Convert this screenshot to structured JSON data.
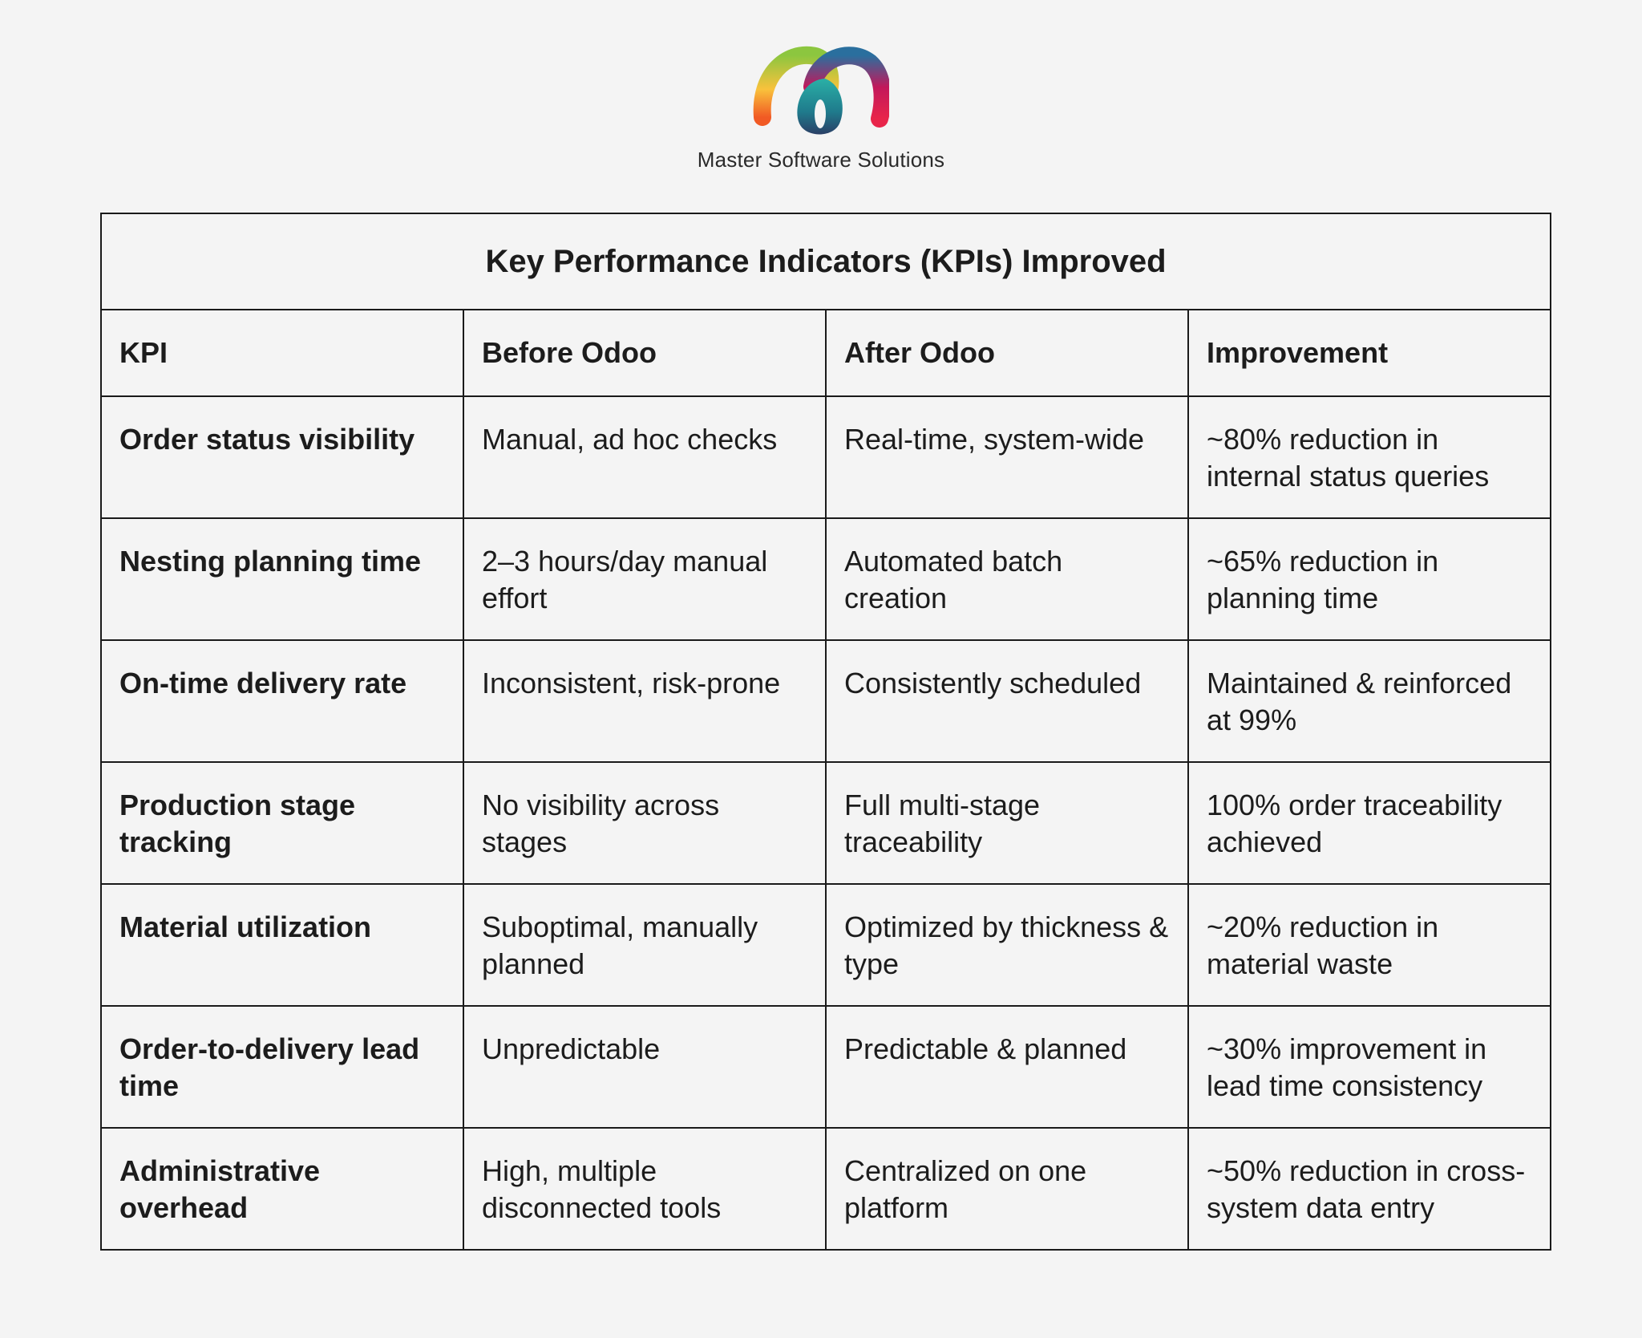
{
  "brand": {
    "name": "Master Software Solutions",
    "logo_icon": "rainbow-loop-logo-icon",
    "colors": {
      "green": "#8cc63f",
      "teal": "#1f8a9a",
      "navy": "#264a6e",
      "orange": "#f7941d",
      "red": "#e8254a"
    }
  },
  "table": {
    "title": "Key Performance Indicators (KPIs) Improved",
    "headers": [
      "KPI",
      "Before Odoo",
      "After Odoo",
      "Improvement"
    ],
    "rows": [
      {
        "kpi": "Order status visibility",
        "before": "Manual, ad hoc checks",
        "after": "Real-time, system-wide",
        "improvement": "~80% reduction in internal status queries"
      },
      {
        "kpi": "Nesting planning time",
        "before": "2–3 hours/day manual effort",
        "after": "Automated batch creation",
        "improvement": "~65% reduction in planning time"
      },
      {
        "kpi": "On-time delivery rate",
        "before": "Inconsistent, risk-prone",
        "after": "Consistently scheduled",
        "improvement": "Maintained & reinforced at 99%"
      },
      {
        "kpi": "Production stage tracking",
        "before": "No visibility across stages",
        "after": "Full multi-stage traceability",
        "improvement": "100% order traceability achieved"
      },
      {
        "kpi": "Material utilization",
        "before": "Suboptimal, manually planned",
        "after": "Optimized by thickness & type",
        "improvement": "~20% reduction in material waste"
      },
      {
        "kpi": "Order-to-delivery lead time",
        "before": "Unpredictable",
        "after": "Predictable & planned",
        "improvement": "~30% improvement in lead time consistency"
      },
      {
        "kpi": "Administrative overhead",
        "before": "High, multiple disconnected tools",
        "after": "Centralized on one platform",
        "improvement": "~50% reduction in cross-system data entry"
      }
    ]
  }
}
